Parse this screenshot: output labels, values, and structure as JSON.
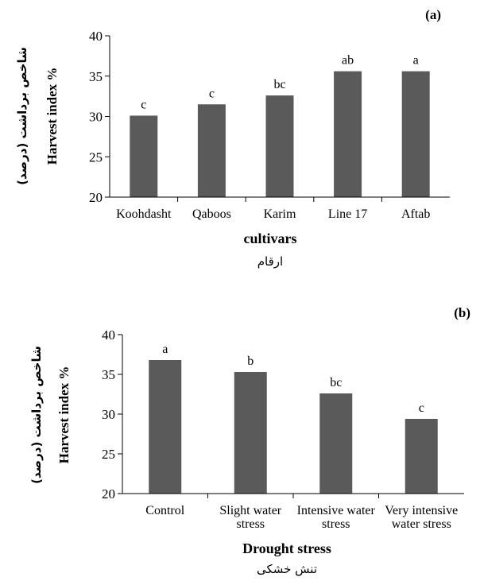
{
  "chart_data": [
    {
      "type": "bar",
      "panel_label": "(a)",
      "categories": [
        "Koohdasht",
        "Qaboos",
        "Karim",
        "Line 17",
        "Aftab"
      ],
      "values": [
        30.1,
        31.5,
        32.6,
        35.6,
        35.6
      ],
      "bar_labels": [
        "c",
        "c",
        "bc",
        "ab",
        "a"
      ],
      "ylabel": "Harvest index  %",
      "ylabel_fa": "شاخص برداشت (درصد)",
      "xlabel": "cultivars",
      "xlabel_fa": "ارقام",
      "ylim": [
        20,
        40
      ],
      "yticks": [
        "20",
        "25",
        "30",
        "35",
        "40"
      ],
      "bar_color": "#5a5a5a"
    },
    {
      "type": "bar",
      "panel_label": "(b)",
      "categories": [
        [
          "Control"
        ],
        [
          "Slight water",
          "stress"
        ],
        [
          "Intensive water",
          "stress"
        ],
        [
          "Very intensive",
          "water stress"
        ]
      ],
      "values": [
        36.8,
        35.3,
        32.6,
        29.4
      ],
      "bar_labels": [
        "a",
        "b",
        "bc",
        "c"
      ],
      "ylabel": "Harvest index  %",
      "ylabel_fa": "شاخص برداشت (درصد)",
      "xlabel": "Drought stress",
      "xlabel_fa": "تنش خشکی",
      "ylim": [
        20,
        40
      ],
      "yticks": [
        "20",
        "25",
        "30",
        "35",
        "40"
      ],
      "bar_color": "#5a5a5a"
    }
  ]
}
